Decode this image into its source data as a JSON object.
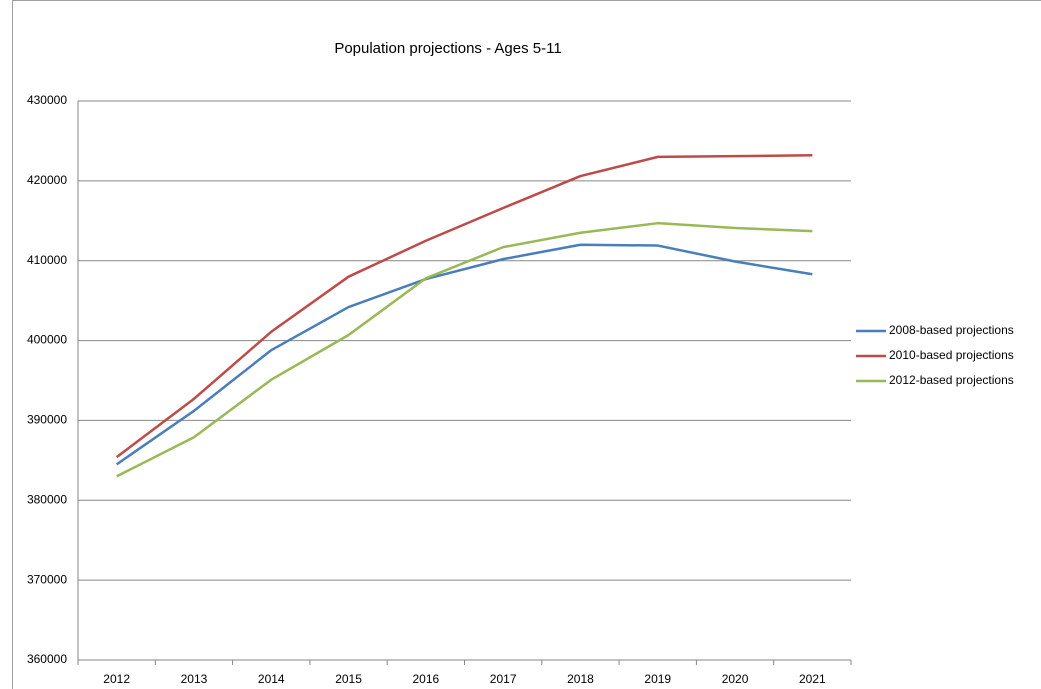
{
  "chart_data": {
    "type": "line",
    "title": "Population projections - Ages 5-11",
    "categories": [
      "2012",
      "2013",
      "2014",
      "2015",
      "2016",
      "2017",
      "2018",
      "2019",
      "2020",
      "2021"
    ],
    "series": [
      {
        "name": "2008-based projections",
        "color": "#4a7ebb",
        "values": [
          384500,
          391200,
          398800,
          404200,
          407700,
          410200,
          412000,
          411900,
          409900,
          408300
        ]
      },
      {
        "name": "2010-based projections",
        "color": "#be4b48",
        "values": [
          385400,
          392700,
          401100,
          408000,
          412500,
          416600,
          420600,
          423000,
          423100,
          423200
        ]
      },
      {
        "name": "2012-based projections",
        "color": "#98b954",
        "values": [
          383000,
          387900,
          395100,
          400700,
          407800,
          411700,
          413500,
          414700,
          414100,
          413700
        ]
      }
    ],
    "ylim": [
      360000,
      430000
    ],
    "yticks": [
      360000,
      370000,
      380000,
      390000,
      400000,
      410000,
      420000,
      430000
    ],
    "grid": true,
    "legend": "right"
  }
}
